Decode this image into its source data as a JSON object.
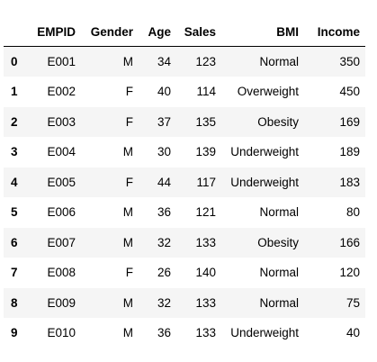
{
  "table": {
    "columns": [
      "",
      "EMPID",
      "Gender",
      "Age",
      "Sales",
      "BMI",
      "Income"
    ],
    "rows": [
      {
        "index": "0",
        "EMPID": "E001",
        "Gender": "M",
        "Age": "34",
        "Sales": "123",
        "BMI": "Normal",
        "Income": "350"
      },
      {
        "index": "1",
        "EMPID": "E002",
        "Gender": "F",
        "Age": "40",
        "Sales": "114",
        "BMI": "Overweight",
        "Income": "450"
      },
      {
        "index": "2",
        "EMPID": "E003",
        "Gender": "F",
        "Age": "37",
        "Sales": "135",
        "BMI": "Obesity",
        "Income": "169"
      },
      {
        "index": "3",
        "EMPID": "E004",
        "Gender": "M",
        "Age": "30",
        "Sales": "139",
        "BMI": "Underweight",
        "Income": "189"
      },
      {
        "index": "4",
        "EMPID": "E005",
        "Gender": "F",
        "Age": "44",
        "Sales": "117",
        "BMI": "Underweight",
        "Income": "183"
      },
      {
        "index": "5",
        "EMPID": "E006",
        "Gender": "M",
        "Age": "36",
        "Sales": "121",
        "BMI": "Normal",
        "Income": "80"
      },
      {
        "index": "6",
        "EMPID": "E007",
        "Gender": "M",
        "Age": "32",
        "Sales": "133",
        "BMI": "Obesity",
        "Income": "166"
      },
      {
        "index": "7",
        "EMPID": "E008",
        "Gender": "F",
        "Age": "26",
        "Sales": "140",
        "BMI": "Normal",
        "Income": "120"
      },
      {
        "index": "8",
        "EMPID": "E009",
        "Gender": "M",
        "Age": "32",
        "Sales": "133",
        "BMI": "Normal",
        "Income": "75"
      },
      {
        "index": "9",
        "EMPID": "E010",
        "Gender": "M",
        "Age": "36",
        "Sales": "133",
        "BMI": "Underweight",
        "Income": "40"
      }
    ]
  },
  "colors": {
    "stripe": "#f5f5f5",
    "background": "#ffffff",
    "text": "#000000"
  }
}
